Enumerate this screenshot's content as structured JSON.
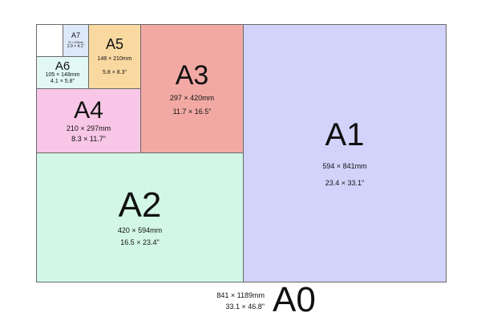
{
  "colors": {
    "A1": "#d2d3fb",
    "A2": "#d3f7e7",
    "A3": "#f2a9a4",
    "A4": "#f8c6e6",
    "A5": "#fad9a1",
    "A6": "#e1f8f4",
    "A7": "#dde8f9",
    "A8": "#ffffff"
  },
  "sheets": {
    "A0": {
      "name": "A0",
      "mm": "841 × 1189mm",
      "inch": "33.1 × 46.8\""
    },
    "A1": {
      "name": "A1",
      "mm": "594 × 841mm",
      "inch": "23.4 × 33.1\""
    },
    "A2": {
      "name": "A2",
      "mm": "420 × 594mm",
      "inch": "16.5 × 23.4\""
    },
    "A3": {
      "name": "A3",
      "mm": "297 × 420mm",
      "inch": "11.7 × 16.5\""
    },
    "A4": {
      "name": "A4",
      "mm": "210 × 297mm",
      "inch": "8.3 × 11.7\""
    },
    "A5": {
      "name": "A5",
      "mm": "148 × 210mm",
      "inch": "5.8 × 8.3\""
    },
    "A6": {
      "name": "A6",
      "mm": "105 × 148mm",
      "inch": "4.1 × 5.8\""
    },
    "A7": {
      "name": "A7",
      "mm": "74 × 105mm",
      "inch": "2.9 × 4.1\""
    }
  }
}
